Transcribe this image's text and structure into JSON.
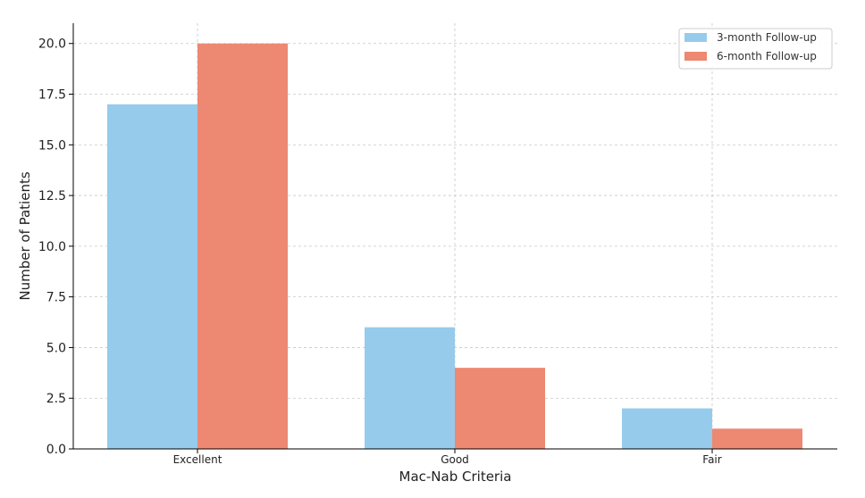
{
  "chart_data": {
    "type": "bar",
    "title": "",
    "xlabel": "Mac-Nab Criteria",
    "ylabel": "Number of Patients",
    "categories": [
      "Excellent",
      "Good",
      "Fair"
    ],
    "series": [
      {
        "name": "3-month Follow-up",
        "values": [
          17,
          6,
          2
        ],
        "color": "#96CBEB"
      },
      {
        "name": "6-month Follow-up",
        "values": [
          20,
          4,
          1
        ],
        "color": "#ED8872"
      }
    ],
    "ylim": [
      0,
      21
    ],
    "yticks": [
      0.0,
      2.5,
      5.0,
      7.5,
      10.0,
      12.5,
      15.0,
      17.5,
      20.0
    ],
    "ytick_labels": [
      "0.0",
      "2.5",
      "5.0",
      "7.5",
      "10.0",
      "12.5",
      "15.0",
      "17.5",
      "20.0"
    ],
    "grid": true,
    "legend_position": "top-right"
  }
}
